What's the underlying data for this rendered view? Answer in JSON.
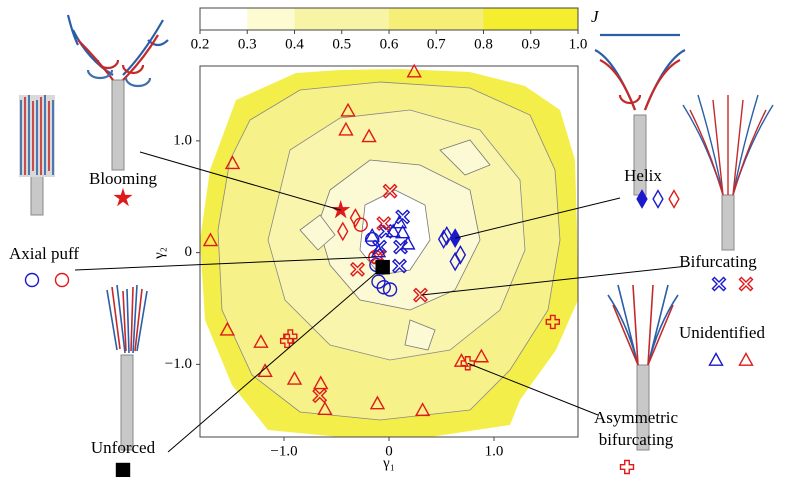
{
  "chart_data": {
    "type": "scatter",
    "xlabel": "γ₁",
    "ylabel": "γ₂",
    "xlim": [
      -1.8,
      1.8
    ],
    "ylim": [
      -1.65,
      1.67
    ],
    "xticks": [
      {
        "value": -1,
        "label": "−1.0"
      },
      0,
      {
        "value": 1,
        "label": "1.0"
      }
    ],
    "yticks": [
      {
        "value": -1,
        "label": "−1.0"
      },
      0,
      {
        "value": 1,
        "label": "1.0"
      }
    ],
    "colorbar": {
      "label": "J",
      "levels": [
        0.2,
        0.3,
        0.4,
        0.6,
        0.8,
        1.0
      ],
      "colors": [
        "#ffffff",
        "#fcfbd2",
        "#f8f4a6",
        "#f5ef78",
        "#f4ee2e"
      ],
      "ticks": [
        0.2,
        0.3,
        0.4,
        0.5,
        0.6,
        0.7,
        0.8,
        0.9,
        {
          "value": 1,
          "label": "1.0"
        }
      ]
    },
    "series": [
      {
        "name": "Blooming",
        "marker": "star",
        "variants": [
          {
            "color": "#e01a1a",
            "filled": true,
            "x": [
              -0.46
            ],
            "values": [
              0.38
            ]
          }
        ]
      },
      {
        "name": "Helix",
        "marker": "diamond",
        "variants": [
          {
            "color": "#1a1acc",
            "filled": true,
            "x": [
              0.63
            ],
            "values": [
              0.13
            ]
          },
          {
            "color": "#1a1acc",
            "filled": false,
            "x": [
              0.55,
              0.52,
              0.68,
              0.63
            ],
            "values": [
              0.15,
              0.12,
              -0.02,
              -0.08
            ]
          },
          {
            "color": "#e01a1a",
            "filled": false,
            "x": [
              -0.44,
              -0.32
            ],
            "values": [
              0.19,
              0.31
            ]
          }
        ]
      },
      {
        "name": "Axial puff",
        "marker": "circle",
        "variants": [
          {
            "color": "#1a1acc",
            "filled": false,
            "x": [
              -0.1,
              0.01,
              -0.05,
              -0.12,
              -0.16
            ],
            "values": [
              -0.26,
              -0.33,
              -0.31,
              -0.11,
              0.12
            ]
          },
          {
            "color": "#e01a1a",
            "filled": false,
            "x": [
              -0.27,
              -0.13
            ],
            "values": [
              0.25,
              -0.04
            ]
          }
        ]
      },
      {
        "name": "Bifurcating",
        "marker": "x",
        "variants": [
          {
            "color": "#1a1acc",
            "filled": false,
            "x": [
              0.13,
              0.11,
              0.1,
              -0.09,
              -0.03
            ],
            "values": [
              0.32,
              0.05,
              -0.12,
              0.05,
              0.19
            ]
          },
          {
            "color": "#e01a1a",
            "filled": false,
            "x": [
              0.01,
              0.3,
              -0.05,
              -0.1,
              -0.3,
              -0.66
            ],
            "values": [
              0.55,
              -0.38,
              0.26,
              -0.04,
              -0.15,
              -1.28
            ]
          }
        ]
      },
      {
        "name": "Unforced",
        "marker": "square",
        "variants": [
          {
            "color": "#000000",
            "filled": true,
            "x": [
              -0.06
            ],
            "values": [
              -0.13
            ]
          }
        ]
      },
      {
        "name": "Unidentified",
        "marker": "triangle",
        "variants": [
          {
            "color": "#1a1acc",
            "filled": false,
            "x": [
              -0.1,
              0.04,
              0.13,
              0.1,
              0.18,
              -0.16
            ],
            "values": [
              0.01,
              0.19,
              0.18,
              0.27,
              0.08,
              0.15
            ]
          },
          {
            "color": "#e01a1a",
            "filled": false,
            "x": [
              0.24,
              -0.39,
              -0.41,
              -0.19,
              -1.49,
              -1.7,
              -1.54,
              -1.22,
              -1.18,
              -0.9,
              -0.65,
              -0.61,
              -0.11,
              0.32,
              0.69,
              0.88
            ],
            "values": [
              1.62,
              1.27,
              1.1,
              1.04,
              0.8,
              0.11,
              -0.69,
              -0.8,
              -1.06,
              -1.13,
              -1.17,
              -1.4,
              -1.35,
              -1.41,
              -0.97,
              -0.93
            ]
          }
        ]
      },
      {
        "name": "Asymmetric bifurcating",
        "marker": "plus",
        "variants": [
          {
            "color": "#e01a1a",
            "filled": false,
            "x": [
              1.56,
              -0.97,
              -0.94,
              0.75
            ],
            "values": [
              -0.62,
              -0.79,
              -0.75,
              -0.99
            ]
          }
        ]
      }
    ]
  }
}
